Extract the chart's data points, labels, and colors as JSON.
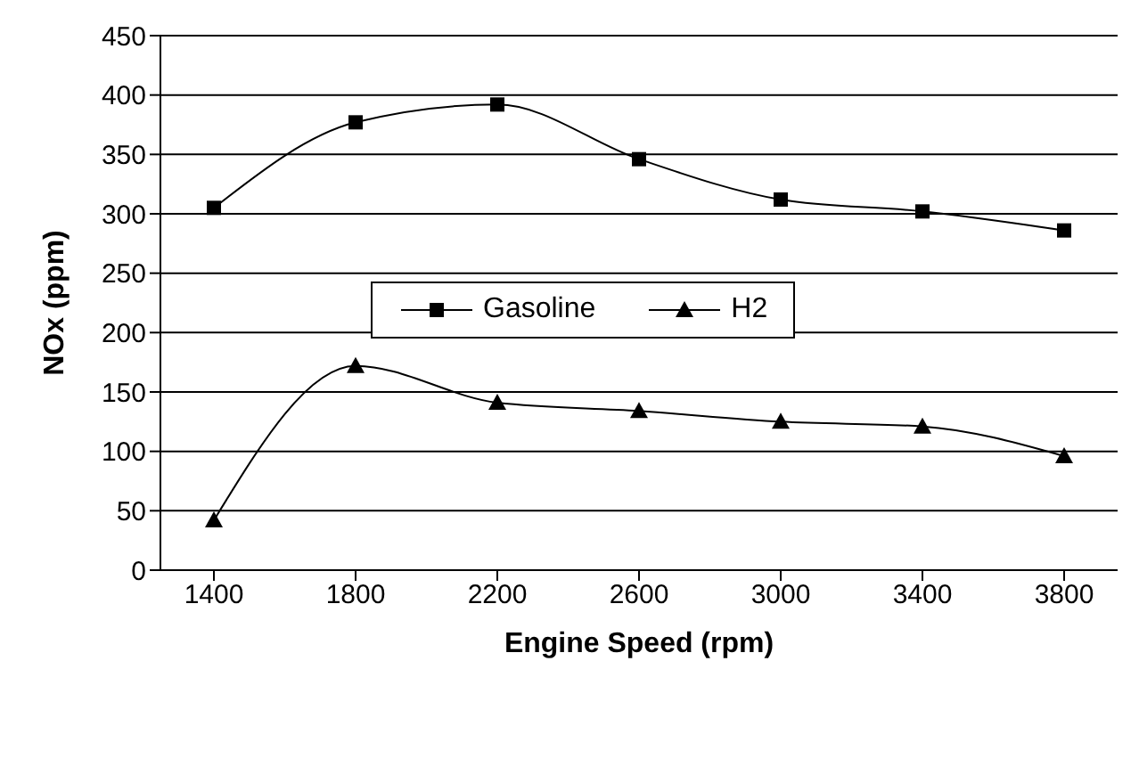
{
  "chart_data": {
    "type": "line",
    "xlabel": "Engine Speed (rpm)",
    "ylabel": "NOx (ppm)",
    "categories": [
      "1400",
      "1800",
      "2200",
      "2600",
      "3000",
      "3400",
      "3800"
    ],
    "series": [
      {
        "name": "Gasoline",
        "color": "#000000",
        "marker": "square",
        "values": [
          305,
          377,
          392,
          346,
          312,
          302,
          286
        ]
      },
      {
        "name": "H2",
        "color": "#000000",
        "marker": "triangle",
        "values": [
          42,
          172,
          141,
          134,
          125,
          121,
          96
        ]
      }
    ],
    "ylim": [
      0,
      450
    ],
    "yticks": [
      0,
      50,
      100,
      150,
      200,
      250,
      300,
      350,
      400,
      450
    ],
    "grid": "y",
    "legend": "center",
    "line_style": "solid"
  }
}
